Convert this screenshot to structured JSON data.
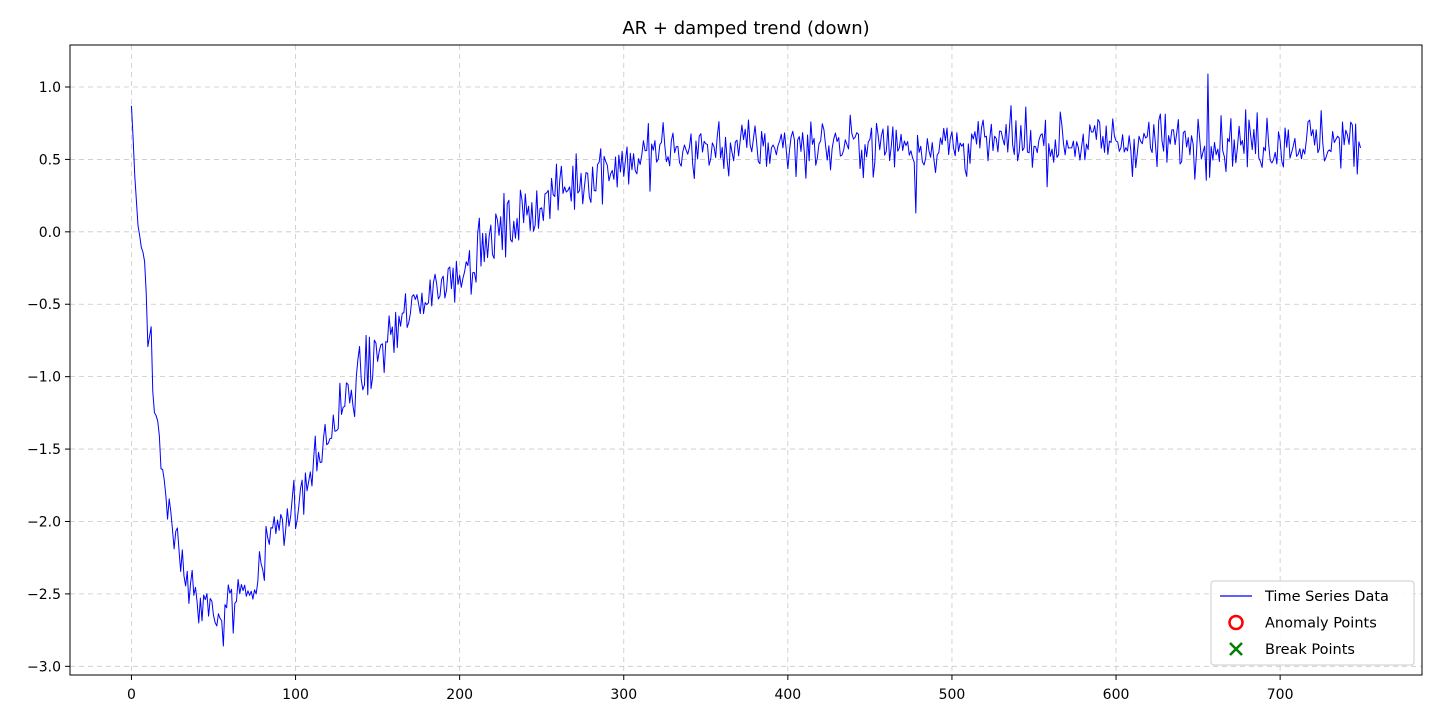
{
  "chart_data": {
    "type": "line",
    "title": "AR + damped trend (down)",
    "xlabel": "",
    "ylabel": "",
    "xlim": [
      -37.45,
      786.45
    ],
    "ylim": [
      -3.06,
      1.29
    ],
    "x_ticks": [
      0,
      100,
      200,
      300,
      400,
      500,
      600,
      700
    ],
    "y_ticks": [
      1.0,
      0.5,
      0.0,
      -0.5,
      -1.0,
      -1.5,
      -2.0,
      -2.5,
      -3.0
    ],
    "x_tick_labels": [
      "0",
      "100",
      "200",
      "300",
      "400",
      "500",
      "600",
      "700"
    ],
    "y_tick_labels": [
      "1.0",
      "0.5",
      "0.0",
      "−0.5",
      "−1.0",
      "−1.5",
      "−2.0",
      "−2.5",
      "−3.0"
    ],
    "grid": true,
    "legend_position": "lower-right",
    "legend": [
      {
        "label": "Time Series Data",
        "marker": "line",
        "color": "#0000ff"
      },
      {
        "label": "Anomaly Points",
        "marker": "circle",
        "color": "#ff0000"
      },
      {
        "label": "Break Points",
        "marker": "x",
        "color": "#008000"
      }
    ],
    "series": [
      {
        "name": "Time Series Data",
        "color": "#0000ff",
        "x_start": 0,
        "x_step": 1,
        "trend_anchor_x": [
          0,
          2,
          4,
          6,
          8,
          10,
          12,
          15,
          18,
          20,
          25,
          30,
          35,
          40,
          45,
          50,
          56,
          60,
          65,
          70,
          75,
          80,
          85,
          90,
          95,
          100,
          105,
          110,
          115,
          120,
          130,
          140,
          150,
          160,
          170,
          175,
          180,
          190,
          200,
          210,
          220,
          230,
          240,
          250,
          260,
          270,
          280,
          290,
          300,
          310,
          320,
          350,
          400,
          450,
          500,
          550,
          600,
          650,
          700,
          749
        ],
        "trend_anchor_y": [
          0.87,
          0.4,
          0.05,
          -0.1,
          -0.2,
          -0.65,
          -0.8,
          -1.25,
          -1.55,
          -1.75,
          -2.05,
          -2.3,
          -2.45,
          -2.55,
          -2.6,
          -2.62,
          -2.65,
          -2.6,
          -2.5,
          -2.45,
          -2.4,
          -2.3,
          -2.1,
          -1.95,
          -1.95,
          -1.9,
          -1.8,
          -1.65,
          -1.55,
          -1.4,
          -1.2,
          -1.0,
          -0.85,
          -0.7,
          -0.55,
          -0.5,
          -0.42,
          -0.35,
          -0.28,
          -0.15,
          -0.05,
          0.05,
          0.12,
          0.2,
          0.28,
          0.33,
          0.4,
          0.45,
          0.48,
          0.5,
          0.55,
          0.57,
          0.6,
          0.6,
          0.6,
          0.62,
          0.62,
          0.62,
          0.62,
          0.62
        ],
        "noise_amplitude": 0.14,
        "n_points": 750,
        "notable_points": [
          {
            "x": 0,
            "y": 0.87
          },
          {
            "x": 56,
            "y": -2.86
          },
          {
            "x": 100,
            "y": -2.05
          },
          {
            "x": 200,
            "y": -0.3
          },
          {
            "x": 478,
            "y": 0.13
          },
          {
            "x": 656,
            "y": 1.09
          },
          {
            "x": 749,
            "y": 0.58
          }
        ]
      }
    ],
    "anomaly_points": [],
    "break_points": []
  }
}
